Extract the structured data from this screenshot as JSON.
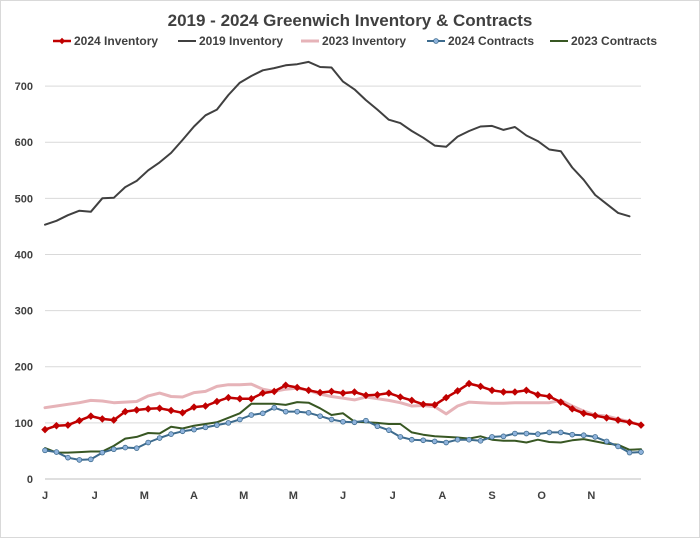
{
  "chart_data": {
    "type": "line",
    "title": "2019 - 2024 Greenwich Inventory & Contracts",
    "xlabel": "",
    "ylabel": "",
    "ylim": [
      0,
      750
    ],
    "yticks": [
      0,
      100,
      200,
      300,
      400,
      500,
      600,
      700
    ],
    "grid": true,
    "legend_position": "top",
    "x_tick_labels": [
      "J",
      "J",
      "M",
      "A",
      "M",
      "M",
      "J",
      "J",
      "A",
      "S",
      "O",
      "N"
    ],
    "x": [
      1,
      2,
      3,
      4,
      5,
      6,
      7,
      8,
      9,
      10,
      11,
      12,
      13,
      14,
      15,
      16,
      17,
      18,
      19,
      20,
      21,
      22,
      23,
      24,
      25,
      26,
      27,
      28,
      29,
      30,
      31,
      32,
      33,
      34,
      35,
      36,
      37,
      38,
      39,
      40,
      41,
      42,
      43,
      44,
      45,
      46,
      47,
      48,
      49,
      50,
      51,
      52,
      53
    ],
    "series": [
      {
        "name": "2024 Inventory",
        "color": "#c00000",
        "marker": "diamond",
        "line_width": 2.5,
        "values": [
          88,
          95,
          96,
          104,
          112,
          107,
          105,
          120,
          123,
          125,
          126,
          122,
          118,
          128,
          130,
          138,
          145,
          143,
          143,
          153,
          156,
          167,
          163,
          158,
          154,
          156,
          153,
          155,
          149,
          150,
          153,
          146,
          140,
          133,
          132,
          145,
          157,
          170,
          165,
          158,
          155,
          155,
          158,
          150,
          147,
          137,
          125,
          117,
          113,
          109,
          105,
          101,
          96
        ]
      },
      {
        "name": "2019 Inventory",
        "color": "#404040",
        "marker": "none",
        "line_width": 2,
        "values": [
          453,
          460,
          470,
          478,
          476,
          500,
          501,
          520,
          531,
          550,
          564,
          581,
          604,
          628,
          648,
          658,
          684,
          706,
          718,
          728,
          732,
          737,
          739,
          743,
          734,
          733,
          708,
          694,
          675,
          658,
          640,
          634,
          620,
          608,
          594,
          592,
          610,
          620,
          628,
          629,
          622,
          627,
          612,
          602,
          587,
          584,
          555,
          533,
          506,
          490,
          474,
          468,
          null
        ]
      },
      {
        "name": "2023 Inventory",
        "color": "#e6b3b8",
        "marker": "none",
        "line_width": 3,
        "values": [
          127,
          130,
          133,
          136,
          140,
          139,
          136,
          137,
          138,
          148,
          153,
          147,
          146,
          154,
          156,
          165,
          168,
          168,
          169,
          160,
          156,
          160,
          162,
          158,
          151,
          147,
          144,
          141,
          146,
          143,
          140,
          136,
          130,
          131,
          129,
          116,
          130,
          137,
          136,
          135,
          135,
          136,
          136,
          136,
          136,
          140,
          130,
          121,
          114,
          112,
          107,
          102,
          96
        ]
      },
      {
        "name": "2024 Contracts",
        "color": "#3d6b8e",
        "marker": "dot",
        "line_width": 2,
        "values": [
          51,
          48,
          38,
          34,
          35,
          47,
          53,
          56,
          55,
          65,
          73,
          80,
          85,
          88,
          92,
          96,
          100,
          106,
          114,
          117,
          127,
          120,
          120,
          118,
          112,
          106,
          102,
          101,
          104,
          94,
          87,
          75,
          70,
          69,
          67,
          65,
          70,
          70,
          68,
          75,
          76,
          81,
          81,
          80,
          83,
          83,
          79,
          78,
          75,
          67,
          58,
          47,
          48
        ]
      },
      {
        "name": "2023 Contracts",
        "color": "#385723",
        "marker": "none",
        "line_width": 2,
        "values": [
          55,
          47,
          47,
          48,
          49,
          49,
          59,
          72,
          75,
          82,
          81,
          93,
          90,
          95,
          98,
          101,
          109,
          117,
          134,
          134,
          134,
          132,
          137,
          136,
          126,
          114,
          117,
          102,
          101,
          100,
          98,
          98,
          83,
          79,
          76,
          75,
          74,
          72,
          76,
          70,
          68,
          68,
          65,
          70,
          66,
          65,
          69,
          71,
          67,
          63,
          61,
          52,
          53
        ]
      }
    ]
  }
}
